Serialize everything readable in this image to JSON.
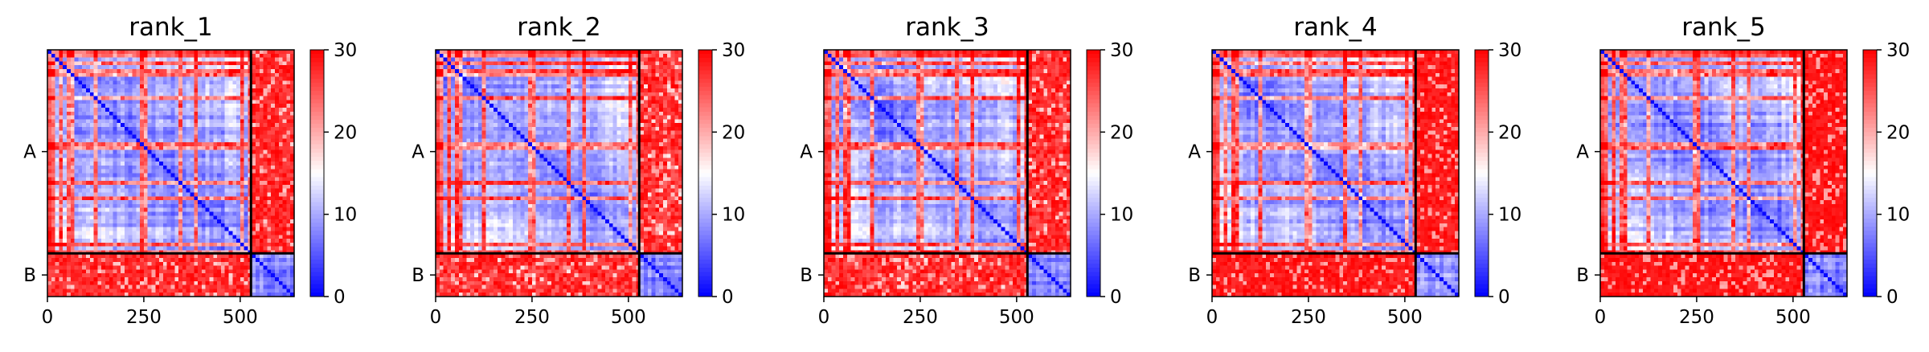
{
  "chart_data": [
    {
      "type": "heatmap",
      "title": "rank_1",
      "x_ticks": [
        0,
        250,
        500
      ],
      "x_range": [
        0,
        640
      ],
      "y_ticks": [
        "A",
        "B"
      ],
      "chains": [
        {
          "name": "A",
          "length": 528
        },
        {
          "name": "B",
          "length": 112
        }
      ],
      "colorbar": {
        "min": 0,
        "max": 30,
        "ticks": [
          0,
          10,
          20,
          30
        ],
        "colors": [
          "#0000ff",
          "#ffffff",
          "#ff0000"
        ]
      },
      "offdiag_fill": 0.85
    },
    {
      "type": "heatmap",
      "title": "rank_2",
      "x_ticks": [
        0,
        250,
        500
      ],
      "x_range": [
        0,
        640
      ],
      "y_ticks": [
        "A",
        "B"
      ],
      "chains": [
        {
          "name": "A",
          "length": 528
        },
        {
          "name": "B",
          "length": 112
        }
      ],
      "colorbar": {
        "min": 0,
        "max": 30,
        "ticks": [
          0,
          10,
          20,
          30
        ],
        "colors": [
          "#0000ff",
          "#ffffff",
          "#ff0000"
        ]
      },
      "offdiag_fill": 0.8
    },
    {
      "type": "heatmap",
      "title": "rank_3",
      "x_ticks": [
        0,
        250,
        500
      ],
      "x_range": [
        0,
        640
      ],
      "y_ticks": [
        "A",
        "B"
      ],
      "chains": [
        {
          "name": "A",
          "length": 528
        },
        {
          "name": "B",
          "length": 112
        }
      ],
      "colorbar": {
        "min": 0,
        "max": 30,
        "ticks": [
          0,
          10,
          20,
          30
        ],
        "colors": [
          "#0000ff",
          "#ffffff",
          "#ff0000"
        ]
      },
      "offdiag_fill": 0.82
    },
    {
      "type": "heatmap",
      "title": "rank_4",
      "x_ticks": [
        0,
        250,
        500
      ],
      "x_range": [
        0,
        640
      ],
      "y_ticks": [
        "A",
        "B"
      ],
      "chains": [
        {
          "name": "A",
          "length": 528
        },
        {
          "name": "B",
          "length": 112
        }
      ],
      "colorbar": {
        "min": 0,
        "max": 30,
        "ticks": [
          0,
          10,
          20,
          30
        ],
        "colors": [
          "#0000ff",
          "#ffffff",
          "#ff0000"
        ]
      },
      "offdiag_fill": 0.9
    },
    {
      "type": "heatmap",
      "title": "rank_5",
      "x_ticks": [
        0,
        250,
        500
      ],
      "x_range": [
        0,
        640
      ],
      "y_ticks": [
        "A",
        "B"
      ],
      "chains": [
        {
          "name": "A",
          "length": 528
        },
        {
          "name": "B",
          "length": 112
        }
      ],
      "colorbar": {
        "min": 0,
        "max": 30,
        "ticks": [
          0,
          10,
          20,
          30
        ],
        "colors": [
          "#0000ff",
          "#ffffff",
          "#ff0000"
        ]
      },
      "offdiag_fill": 0.92
    }
  ]
}
